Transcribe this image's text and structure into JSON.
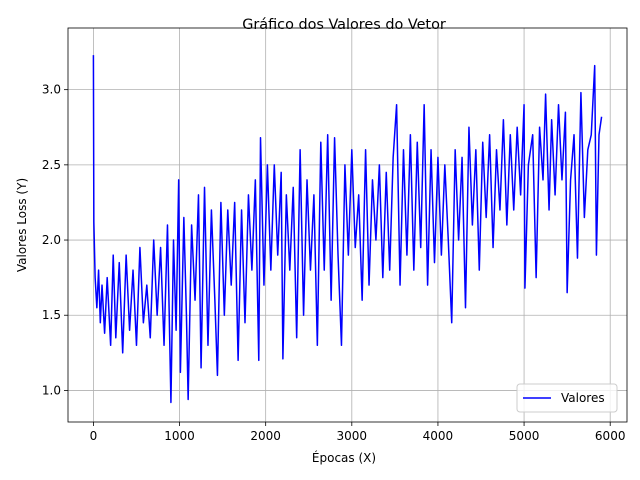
{
  "chart_data": {
    "type": "line",
    "title": "Gráfico dos Valores do Vetor",
    "x_label": "Épocas (X)",
    "y_label": "Valores Loss (Y)",
    "x": [
      0,
      5,
      20,
      40,
      60,
      80,
      100,
      130,
      160,
      200,
      230,
      260,
      300,
      340,
      380,
      420,
      460,
      500,
      540,
      580,
      620,
      660,
      700,
      740,
      780,
      820,
      860,
      900,
      930,
      960,
      990,
      1010,
      1050,
      1080,
      1100,
      1140,
      1180,
      1220,
      1250,
      1290,
      1330,
      1370,
      1410,
      1440,
      1480,
      1520,
      1560,
      1600,
      1640,
      1680,
      1720,
      1760,
      1800,
      1840,
      1880,
      1920,
      1940,
      1980,
      2020,
      2060,
      2100,
      2140,
      2180,
      2200,
      2240,
      2280,
      2320,
      2360,
      2400,
      2440,
      2480,
      2520,
      2560,
      2600,
      2640,
      2680,
      2720,
      2760,
      2800,
      2840,
      2880,
      2920,
      2960,
      3000,
      3040,
      3080,
      3120,
      3160,
      3200,
      3240,
      3280,
      3320,
      3360,
      3400,
      3440,
      3480,
      3520,
      3560,
      3600,
      3640,
      3680,
      3720,
      3760,
      3800,
      3840,
      3880,
      3920,
      3960,
      4000,
      4040,
      4080,
      4120,
      4160,
      4200,
      4240,
      4280,
      4320,
      4360,
      4400,
      4440,
      4480,
      4520,
      4560,
      4600,
      4640,
      4680,
      4720,
      4760,
      4800,
      4840,
      4880,
      4920,
      4960,
      5000,
      5010,
      5050,
      5100,
      5140,
      5180,
      5220,
      5250,
      5290,
      5320,
      5360,
      5400,
      5440,
      5480,
      5500,
      5540,
      5580,
      5620,
      5660,
      5700,
      5740,
      5780,
      5820,
      5840,
      5870,
      5900
    ],
    "series": [
      {
        "name": "Valores",
        "color": "#0000ff",
        "values": [
          3.23,
          2.12,
          1.75,
          1.55,
          1.8,
          1.45,
          1.7,
          1.38,
          1.75,
          1.3,
          1.9,
          1.35,
          1.85,
          1.25,
          1.9,
          1.4,
          1.8,
          1.3,
          1.95,
          1.45,
          1.7,
          1.35,
          2.0,
          1.5,
          1.95,
          1.3,
          2.1,
          0.92,
          2.0,
          1.4,
          2.4,
          1.12,
          2.15,
          1.5,
          0.94,
          2.1,
          1.6,
          2.3,
          1.15,
          2.35,
          1.3,
          2.2,
          1.6,
          1.1,
          2.25,
          1.5,
          2.2,
          1.7,
          2.25,
          1.2,
          2.2,
          1.45,
          2.3,
          1.8,
          2.4,
          1.2,
          2.68,
          1.7,
          2.5,
          1.8,
          2.5,
          1.9,
          2.45,
          1.21,
          2.3,
          1.8,
          2.35,
          1.35,
          2.6,
          1.5,
          2.4,
          1.8,
          2.3,
          1.3,
          2.65,
          1.8,
          2.7,
          1.6,
          2.68,
          1.9,
          1.3,
          2.5,
          1.9,
          2.6,
          1.95,
          2.3,
          1.6,
          2.6,
          1.7,
          2.4,
          2.0,
          2.5,
          1.75,
          2.45,
          1.8,
          2.55,
          2.9,
          1.7,
          2.6,
          1.9,
          2.7,
          1.8,
          2.65,
          1.95,
          2.9,
          1.7,
          2.6,
          1.85,
          2.55,
          1.9,
          2.5,
          2.0,
          1.45,
          2.6,
          2.0,
          2.55,
          1.55,
          2.75,
          2.1,
          2.6,
          1.8,
          2.65,
          2.15,
          2.7,
          1.95,
          2.6,
          2.2,
          2.8,
          2.1,
          2.7,
          2.2,
          2.75,
          2.3,
          2.9,
          1.68,
          2.5,
          2.7,
          1.75,
          2.75,
          2.4,
          2.97,
          2.2,
          2.8,
          2.3,
          2.9,
          2.4,
          2.85,
          1.65,
          2.4,
          2.7,
          1.88,
          2.98,
          2.15,
          2.6,
          2.7,
          3.16,
          1.9,
          2.7,
          2.82
        ]
      }
    ],
    "xlim": [
      -295,
      6195
    ],
    "xticks": [
      0,
      1000,
      2000,
      3000,
      4000,
      5000,
      6000
    ],
    "ylim": [
      0.79,
      3.41
    ],
    "yticks": [
      {
        "value": 1,
        "label": "1.0"
      },
      {
        "value": 1.5,
        "label": "1.5"
      },
      {
        "value": 2,
        "label": "2.0"
      },
      {
        "value": 2.5,
        "label": "2.5"
      },
      {
        "value": 3,
        "label": "3.0"
      }
    ],
    "grid": true,
    "legend": "lower right"
  }
}
